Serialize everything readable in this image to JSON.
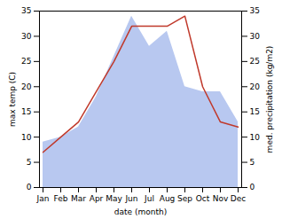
{
  "chart_data": {
    "type": "line",
    "xlabel": "date (month)",
    "ylabel": "max temp (C)",
    "y2label": "med. precipitation (kg/m2)",
    "categories": [
      "Jan",
      "Feb",
      "Mar",
      "Apr",
      "May",
      "Jun",
      "Jul",
      "Aug",
      "Sep",
      "Oct",
      "Nov",
      "Dec"
    ],
    "series": [
      {
        "type": "line",
        "color": "#c0392b",
        "values": [
          7,
          10,
          13,
          19,
          25,
          32,
          32,
          32,
          34,
          20,
          13,
          12
        ]
      },
      {
        "type": "area",
        "axis": "y2",
        "color": "#b8c8f0",
        "values": [
          9,
          10,
          12,
          18,
          26,
          34,
          28,
          31,
          20,
          19,
          19,
          13
        ]
      }
    ],
    "ylim": [
      0,
      35
    ],
    "yticks": [
      0,
      5,
      10,
      15,
      20,
      25,
      30,
      35
    ],
    "y2lim": [
      0,
      35
    ],
    "y2ticks": [
      0,
      5,
      10,
      15,
      20,
      25,
      30,
      35
    ],
    "grid": false
  }
}
